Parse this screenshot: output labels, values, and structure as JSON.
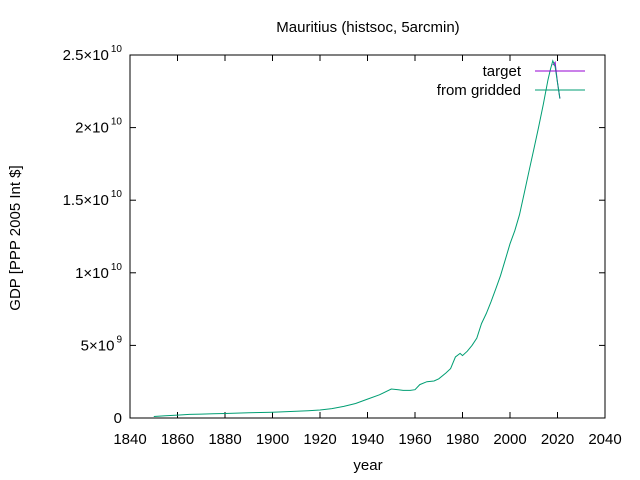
{
  "chart_data": {
    "type": "line",
    "title": "Mauritius (histsoc, 5arcmin)",
    "xlabel": "year",
    "ylabel": "GDP [PPP 2005 Int $]",
    "xlim": [
      1840,
      2040
    ],
    "ylim": [
      0,
      25000000000
    ],
    "x_ticks": [
      "1840",
      "1860",
      "1880",
      "1900",
      "1920",
      "1940",
      "1960",
      "1980",
      "2000",
      "2020",
      "2040"
    ],
    "y_ticks": [
      {
        "value": 0,
        "mantissa": "0",
        "exponent": ""
      },
      {
        "value": 5000000000,
        "mantissa": "5×10",
        "exponent": "9"
      },
      {
        "value": 10000000000,
        "mantissa": "1×10",
        "exponent": "10"
      },
      {
        "value": 15000000000,
        "mantissa": "1.5×10",
        "exponent": "10"
      },
      {
        "value": 20000000000,
        "mantissa": "2×10",
        "exponent": "10"
      },
      {
        "value": 25000000000,
        "mantissa": "2.5×10",
        "exponent": "10"
      }
    ],
    "grid": false,
    "legend_position": "top-right",
    "series": [
      {
        "name": "target",
        "color": "#9400d3",
        "x": [
          2018,
          2019,
          2020,
          2021
        ],
        "y": [
          24300000000,
          24500000000,
          23100000000,
          22000000000
        ]
      },
      {
        "name": "from gridded",
        "color": "#009e73",
        "x": [
          1850,
          1855,
          1860,
          1865,
          1870,
          1875,
          1880,
          1885,
          1890,
          1895,
          1900,
          1905,
          1910,
          1915,
          1920,
          1925,
          1930,
          1935,
          1940,
          1945,
          1950,
          1953,
          1955,
          1958,
          1960,
          1962,
          1965,
          1968,
          1970,
          1973,
          1975,
          1977,
          1979,
          1980,
          1982,
          1984,
          1986,
          1988,
          1990,
          1992,
          1994,
          1996,
          1998,
          2000,
          2002,
          2004,
          2006,
          2008,
          2010,
          2012,
          2014,
          2016,
          2017,
          2018,
          2019,
          2020,
          2021
        ],
        "y": [
          100000000,
          150000000,
          200000000,
          250000000,
          270000000,
          290000000,
          310000000,
          340000000,
          360000000,
          380000000,
          400000000,
          430000000,
          460000000,
          500000000,
          550000000,
          650000000,
          800000000,
          1000000000,
          1300000000,
          1600000000,
          2000000000,
          1950000000,
          1900000000,
          1900000000,
          1950000000,
          2300000000,
          2500000000,
          2550000000,
          2700000000,
          3100000000,
          3400000000,
          4200000000,
          4450000000,
          4300000000,
          4600000000,
          5000000000,
          5500000000,
          6500000000,
          7200000000,
          8000000000,
          8900000000,
          9800000000,
          10900000000,
          12000000000,
          12900000000,
          14000000000,
          15500000000,
          17000000000,
          18500000000,
          20000000000,
          21600000000,
          23300000000,
          24000000000,
          24600000000,
          24200000000,
          23100000000,
          22000000000
        ]
      }
    ]
  }
}
